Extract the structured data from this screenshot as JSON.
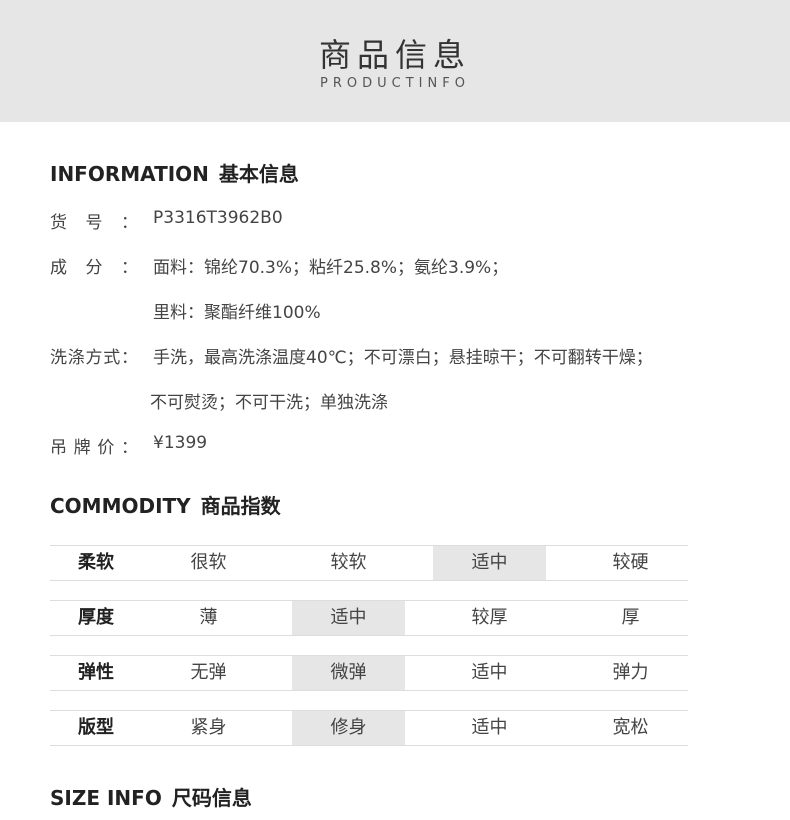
{
  "header": {
    "title": "商品信息",
    "subtitle": "PRODUCTINFO"
  },
  "information": {
    "heading": "INFORMATION",
    "heading_cn": "基本信息",
    "rows": [
      {
        "label": "货号：",
        "value": "P3316T3962B0"
      },
      {
        "label": "成分：",
        "value": "面料：锦纶70.3%；粘纤25.8%；氨纶3.9%；"
      },
      {
        "label": null,
        "value": "里料：聚酯纤维100%"
      },
      {
        "label": "洗涤方式：",
        "value": "手洗，最高洗涤温度40℃；不可漂白；悬挂晾干；不可翻转干燥；"
      },
      {
        "label": null,
        "value": "不可熨烫；不可干洗；单独洗涤"
      },
      {
        "label": "吊牌价：",
        "value": "¥1399"
      }
    ]
  },
  "commodity": {
    "heading": "COMMODITY",
    "heading_cn": "商品指数",
    "rows": [
      {
        "label": "柔软",
        "options": [
          "很软",
          "较软",
          "适中",
          "较硬"
        ],
        "selected": 2
      },
      {
        "label": "厚度",
        "options": [
          "薄",
          "适中",
          "较厚",
          "厚"
        ],
        "selected": 1
      },
      {
        "label": "弹性",
        "options": [
          "无弹",
          "微弹",
          "适中",
          "弹力"
        ],
        "selected": 1
      },
      {
        "label": "版型",
        "options": [
          "紧身",
          "修身",
          "适中",
          "宽松"
        ],
        "selected": 1
      }
    ]
  },
  "size": {
    "heading": "SIZE INFO",
    "heading_cn": "尺码信息"
  }
}
